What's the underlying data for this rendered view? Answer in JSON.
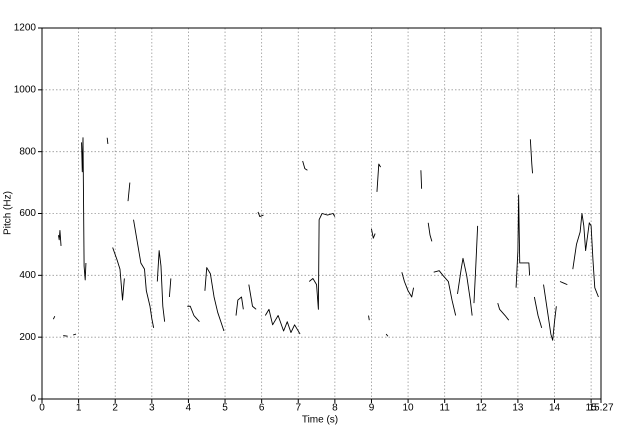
{
  "chart_data": {
    "type": "line",
    "x_label": "Time (s)",
    "y_label": "Pitch (Hz)",
    "x": [
      0.31,
      0.35,
      0.4,
      0.45,
      0.47,
      0.49,
      0.52,
      0.55,
      0.58,
      0.7,
      0.78,
      0.85,
      0.93,
      1.0,
      1.08,
      1.1,
      1.12,
      1.15,
      1.18,
      1.2,
      1.5,
      1.78,
      1.8,
      1.87,
      1.93,
      2.05,
      2.13,
      2.2,
      2.25,
      2.3,
      2.35,
      2.4,
      2.45,
      2.5,
      2.6,
      2.7,
      2.8,
      2.85,
      2.95,
      3.0,
      3.05,
      3.1,
      3.15,
      3.2,
      3.25,
      3.3,
      3.35,
      3.4,
      3.48,
      3.52,
      3.8,
      3.97,
      4.05,
      4.15,
      4.3,
      4.4,
      4.45,
      4.5,
      4.6,
      4.7,
      4.8,
      4.9,
      4.97,
      5.2,
      5.3,
      5.35,
      5.45,
      5.5,
      5.6,
      5.65,
      5.75,
      5.85,
      5.88,
      5.9,
      5.95,
      6.05,
      6.07,
      6.1,
      6.2,
      6.3,
      6.45,
      6.6,
      6.7,
      6.8,
      6.9,
      7.05,
      7.1,
      7.12,
      7.18,
      7.25,
      7.28,
      7.3,
      7.4,
      7.5,
      7.55,
      7.57,
      7.65,
      7.8,
      7.95,
      8.0,
      8.5,
      8.92,
      8.94,
      8.97,
      9.0,
      9.05,
      9.1,
      9.12,
      9.15,
      9.2,
      9.25,
      9.3,
      9.4,
      9.45,
      9.6,
      9.83,
      9.9,
      10.0,
      10.1,
      10.15,
      10.2,
      10.35,
      10.37,
      10.45,
      10.55,
      10.6,
      10.65,
      10.67,
      10.7,
      10.85,
      10.95,
      11.1,
      11.2,
      11.3,
      11.32,
      11.35,
      11.45,
      11.5,
      11.6,
      11.7,
      11.75,
      11.78,
      11.8,
      11.85,
      11.9,
      12.2,
      12.45,
      12.5,
      12.65,
      12.75,
      12.85,
      12.95,
      13.0,
      13.02,
      13.05,
      13.3,
      13.32,
      13.33,
      13.34,
      13.38,
      13.4,
      13.42,
      13.45,
      13.55,
      13.65,
      13.68,
      13.7,
      13.8,
      13.9,
      13.95,
      14.0,
      14.05,
      14.1,
      14.15,
      14.25,
      14.35,
      14.4,
      14.5,
      14.6,
      14.7,
      14.75,
      14.8,
      14.85,
      14.95,
      15.0,
      15.05,
      15.1,
      15.2
    ],
    "series": [
      {
        "color": "#000000",
        "values": [
          258,
          268,
          null,
          530,
          515,
          545,
          495,
          null,
          205,
          203,
          null,
          207,
          210,
          null,
          830,
          735,
          845,
          430,
          385,
          440,
          null,
          845,
          825,
          null,
          490,
          450,
          420,
          320,
          390,
          null,
          640,
          700,
          null,
          580,
          510,
          440,
          420,
          350,
          300,
          260,
          230,
          null,
          380,
          480,
          430,
          300,
          250,
          null,
          330,
          390,
          null,
          300,
          300,
          270,
          250,
          null,
          350,
          425,
          405,
          330,
          280,
          245,
          220,
          null,
          270,
          320,
          330,
          290,
          null,
          370,
          300,
          290,
          null,
          605,
          590,
          595,
          null,
          270,
          290,
          240,
          270,
          220,
          250,
          215,
          240,
          210,
          null,
          770,
          745,
          740,
          null,
          380,
          390,
          370,
          290,
          580,
          600,
          595,
          600,
          590,
          null,
          270,
          255,
          null,
          550,
          520,
          535,
          null,
          670,
          760,
          750,
          null,
          210,
          203,
          null,
          410,
          380,
          350,
          330,
          360,
          null,
          740,
          680,
          null,
          570,
          530,
          510,
          null,
          410,
          415,
          400,
          380,
          320,
          270,
          null,
          340,
          420,
          455,
          400,
          320,
          270,
          null,
          310,
          430,
          560,
          null,
          310,
          290,
          270,
          255,
          null,
          360,
          480,
          660,
          440,
          440,
          400,
          null,
          840,
          760,
          730,
          null,
          330,
          270,
          230,
          null,
          370,
          290,
          210,
          190,
          250,
          300,
          null,
          380,
          375,
          370,
          null,
          420,
          500,
          540,
          600,
          560,
          480,
          570,
          560,
          450,
          360,
          330
        ]
      }
    ],
    "xlim": [
      0,
      15.27
    ],
    "ylim": [
      0,
      1200
    ],
    "xticks": [
      0,
      1,
      2,
      3,
      4,
      5,
      6,
      7,
      8,
      9,
      10,
      11,
      12,
      13,
      14,
      15,
      15.27
    ],
    "yticks": [
      0,
      200,
      400,
      600,
      800,
      1000,
      1200
    ],
    "grid": true
  }
}
